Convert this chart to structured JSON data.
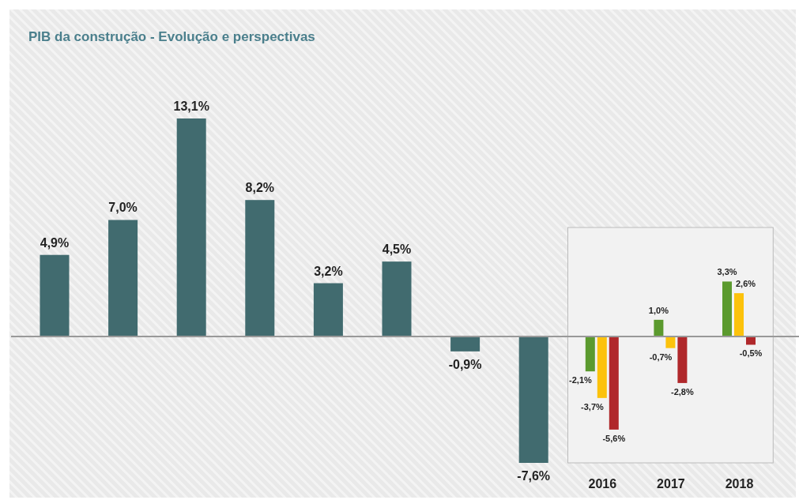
{
  "chart_data": {
    "type": "bar",
    "title": "PIB da construção - Evolução e perspectivas",
    "categories": [
      null,
      null,
      null,
      null,
      null,
      null,
      null,
      null,
      "2016",
      "2017",
      "2018"
    ],
    "series": [
      {
        "color": "#416b6f",
        "values": [
          4.9,
          7.0,
          13.1,
          8.2,
          3.2,
          4.5,
          -0.9,
          -7.6,
          null,
          null,
          null
        ],
        "value_labels": [
          "4,9%",
          "7,0%",
          "13,1%",
          "8,2%",
          "3,2%",
          "4,5%",
          "-0,9%",
          "-7,6%",
          null,
          null,
          null
        ]
      },
      {
        "color": "#5b9a2e",
        "values": [
          null,
          null,
          null,
          null,
          null,
          null,
          null,
          null,
          -2.1,
          1.0,
          3.3
        ],
        "value_labels": [
          null,
          null,
          null,
          null,
          null,
          null,
          null,
          null,
          "-2,1%",
          "1,0%",
          "3,3%"
        ]
      },
      {
        "color": "#fcc20c",
        "values": [
          null,
          null,
          null,
          null,
          null,
          null,
          null,
          null,
          -3.7,
          -0.7,
          2.6
        ],
        "value_labels": [
          null,
          null,
          null,
          null,
          null,
          null,
          null,
          null,
          "-3,7%",
          "-0,7%",
          "2,6%"
        ]
      },
      {
        "color": "#b0282b",
        "values": [
          null,
          null,
          null,
          null,
          null,
          null,
          null,
          null,
          -5.6,
          -2.8,
          -0.5
        ],
        "value_labels": [
          null,
          null,
          null,
          null,
          null,
          null,
          null,
          null,
          "-5,6%",
          "-2,8%",
          "-0,5%"
        ]
      }
    ],
    "bands": [
      {
        "axis": "x",
        "from": "2016",
        "to": "2018",
        "color": "#f2f2f2"
      }
    ]
  }
}
